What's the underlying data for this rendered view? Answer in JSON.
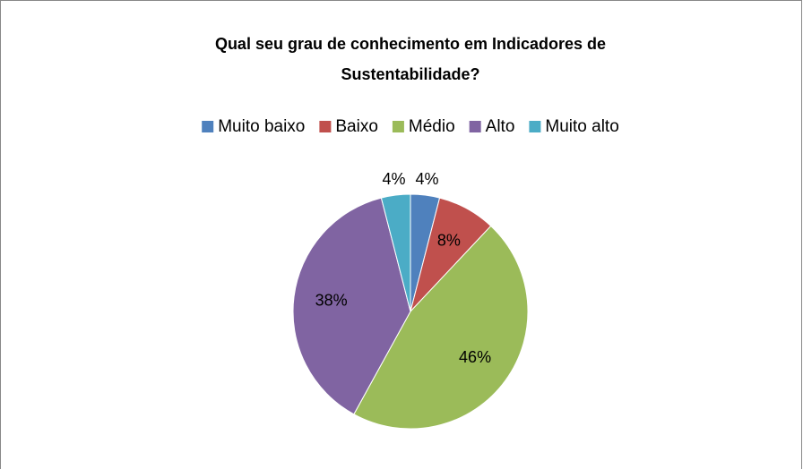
{
  "chart_data": {
    "type": "pie",
    "title": [
      "Qual seu grau de conhecimento em Indicadores de",
      "Sustentabilidade?"
    ],
    "categories": [
      "Muito baixo",
      "Baixo",
      "Médio",
      "Alto",
      "Muito alto"
    ],
    "values": [
      4,
      8,
      46,
      38,
      4
    ],
    "value_labels": [
      "4%",
      "8%",
      "46%",
      "38%",
      "4%"
    ],
    "colors": [
      "#4f81bd",
      "#c0504d",
      "#9bbb59",
      "#8064a2",
      "#4bacc6"
    ],
    "legend": "top"
  }
}
